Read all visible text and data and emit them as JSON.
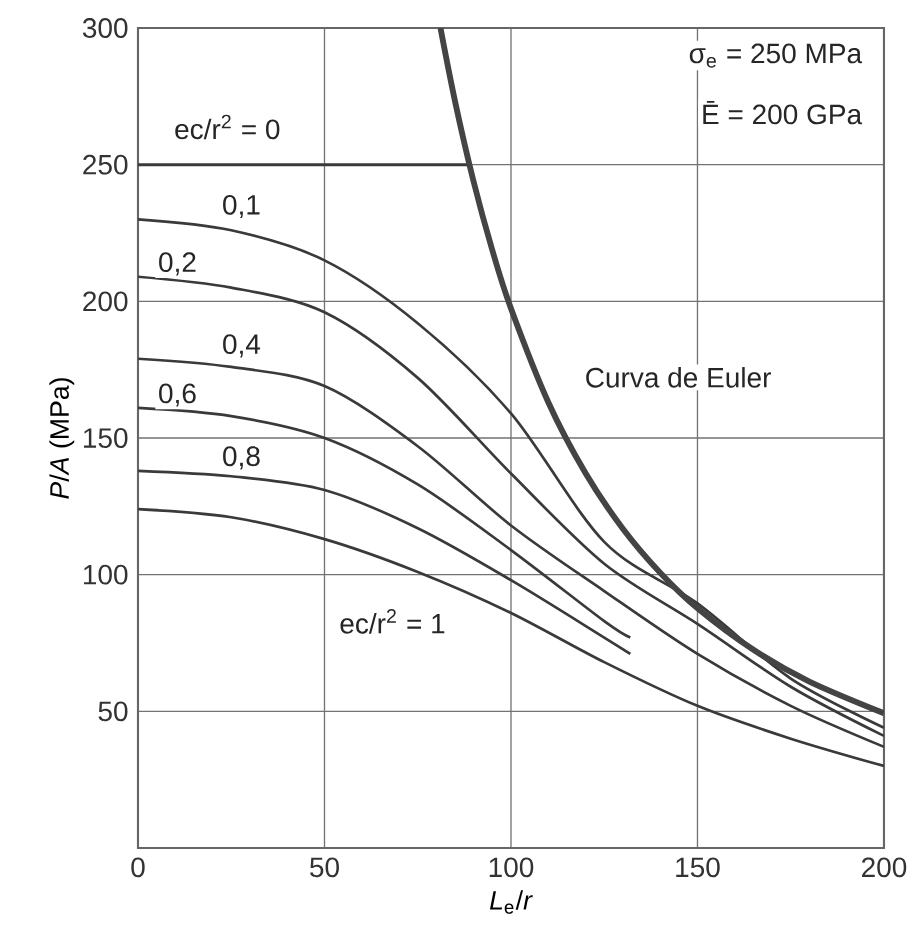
{
  "chart_data": {
    "type": "line",
    "xlabel": "*L*$_{e}$/*r*",
    "ylabel": "*P*/*A* (MPa)",
    "xlim": [
      0,
      200
    ],
    "ylim": [
      0,
      300
    ],
    "xticks": [
      0,
      50,
      100,
      150,
      200
    ],
    "yticks": [
      50,
      100,
      150,
      200,
      250,
      300
    ],
    "grid": true,
    "series": [
      {
        "name": "ec/r$^{2}$ = 0",
        "color": "#3a3a3a",
        "x": [
          0,
          88.9
        ],
        "values": [
          250,
          250
        ]
      },
      {
        "name": "0,1",
        "color": "#3a3a3a",
        "x": [
          0,
          25,
          50,
          75,
          100,
          125,
          150,
          175,
          200
        ],
        "values": [
          230,
          226,
          215,
          192,
          159,
          112,
          89.5,
          62,
          44
        ]
      },
      {
        "name": "0,2",
        "color": "#3a3a3a",
        "x": [
          0,
          25,
          50,
          75,
          100,
          125,
          150,
          175,
          200
        ],
        "values": [
          209,
          205,
          196,
          172,
          137,
          104,
          82,
          59,
          41
        ]
      },
      {
        "name": "0,4",
        "color": "#3a3a3a",
        "x": [
          0,
          25,
          50,
          75,
          100,
          125,
          150,
          175,
          200
        ],
        "values": [
          179,
          176,
          169,
          147,
          118,
          94,
          71,
          52,
          37
        ]
      },
      {
        "name": "0,6",
        "color": "#3a3a3a",
        "x": [
          0,
          25,
          50,
          75,
          100,
          125,
          132
        ],
        "values": [
          161,
          158,
          150,
          133,
          109,
          83,
          77
        ]
      },
      {
        "name": "0,8",
        "color": "#3a3a3a",
        "x": [
          0,
          25,
          50,
          75,
          100,
          125,
          132
        ],
        "values": [
          138,
          136,
          131,
          117,
          98,
          77,
          71
        ]
      },
      {
        "name": "ec/r$^{2}$ = 1",
        "color": "#3a3a3a",
        "x": [
          0,
          25,
          50,
          75,
          100,
          125,
          150,
          175,
          200
        ],
        "values": [
          124,
          121,
          113,
          101,
          86,
          68,
          52,
          40,
          30
        ]
      },
      {
        "name": "Curva de Euler",
        "color": "#444444",
        "x": [
          81.1,
          85,
          90,
          95,
          100,
          110,
          120,
          130,
          140,
          150,
          165,
          180,
          200
        ],
        "values": [
          300,
          273.2,
          243.7,
          218.7,
          197.4,
          163.1,
          137.1,
          116.8,
          100.7,
          87.7,
          72.5,
          60.9,
          49.3
        ]
      }
    ],
    "annotations": [
      "σ$_{e}$ = 250 MPa",
      "Ē = 200 GPa"
    ]
  }
}
